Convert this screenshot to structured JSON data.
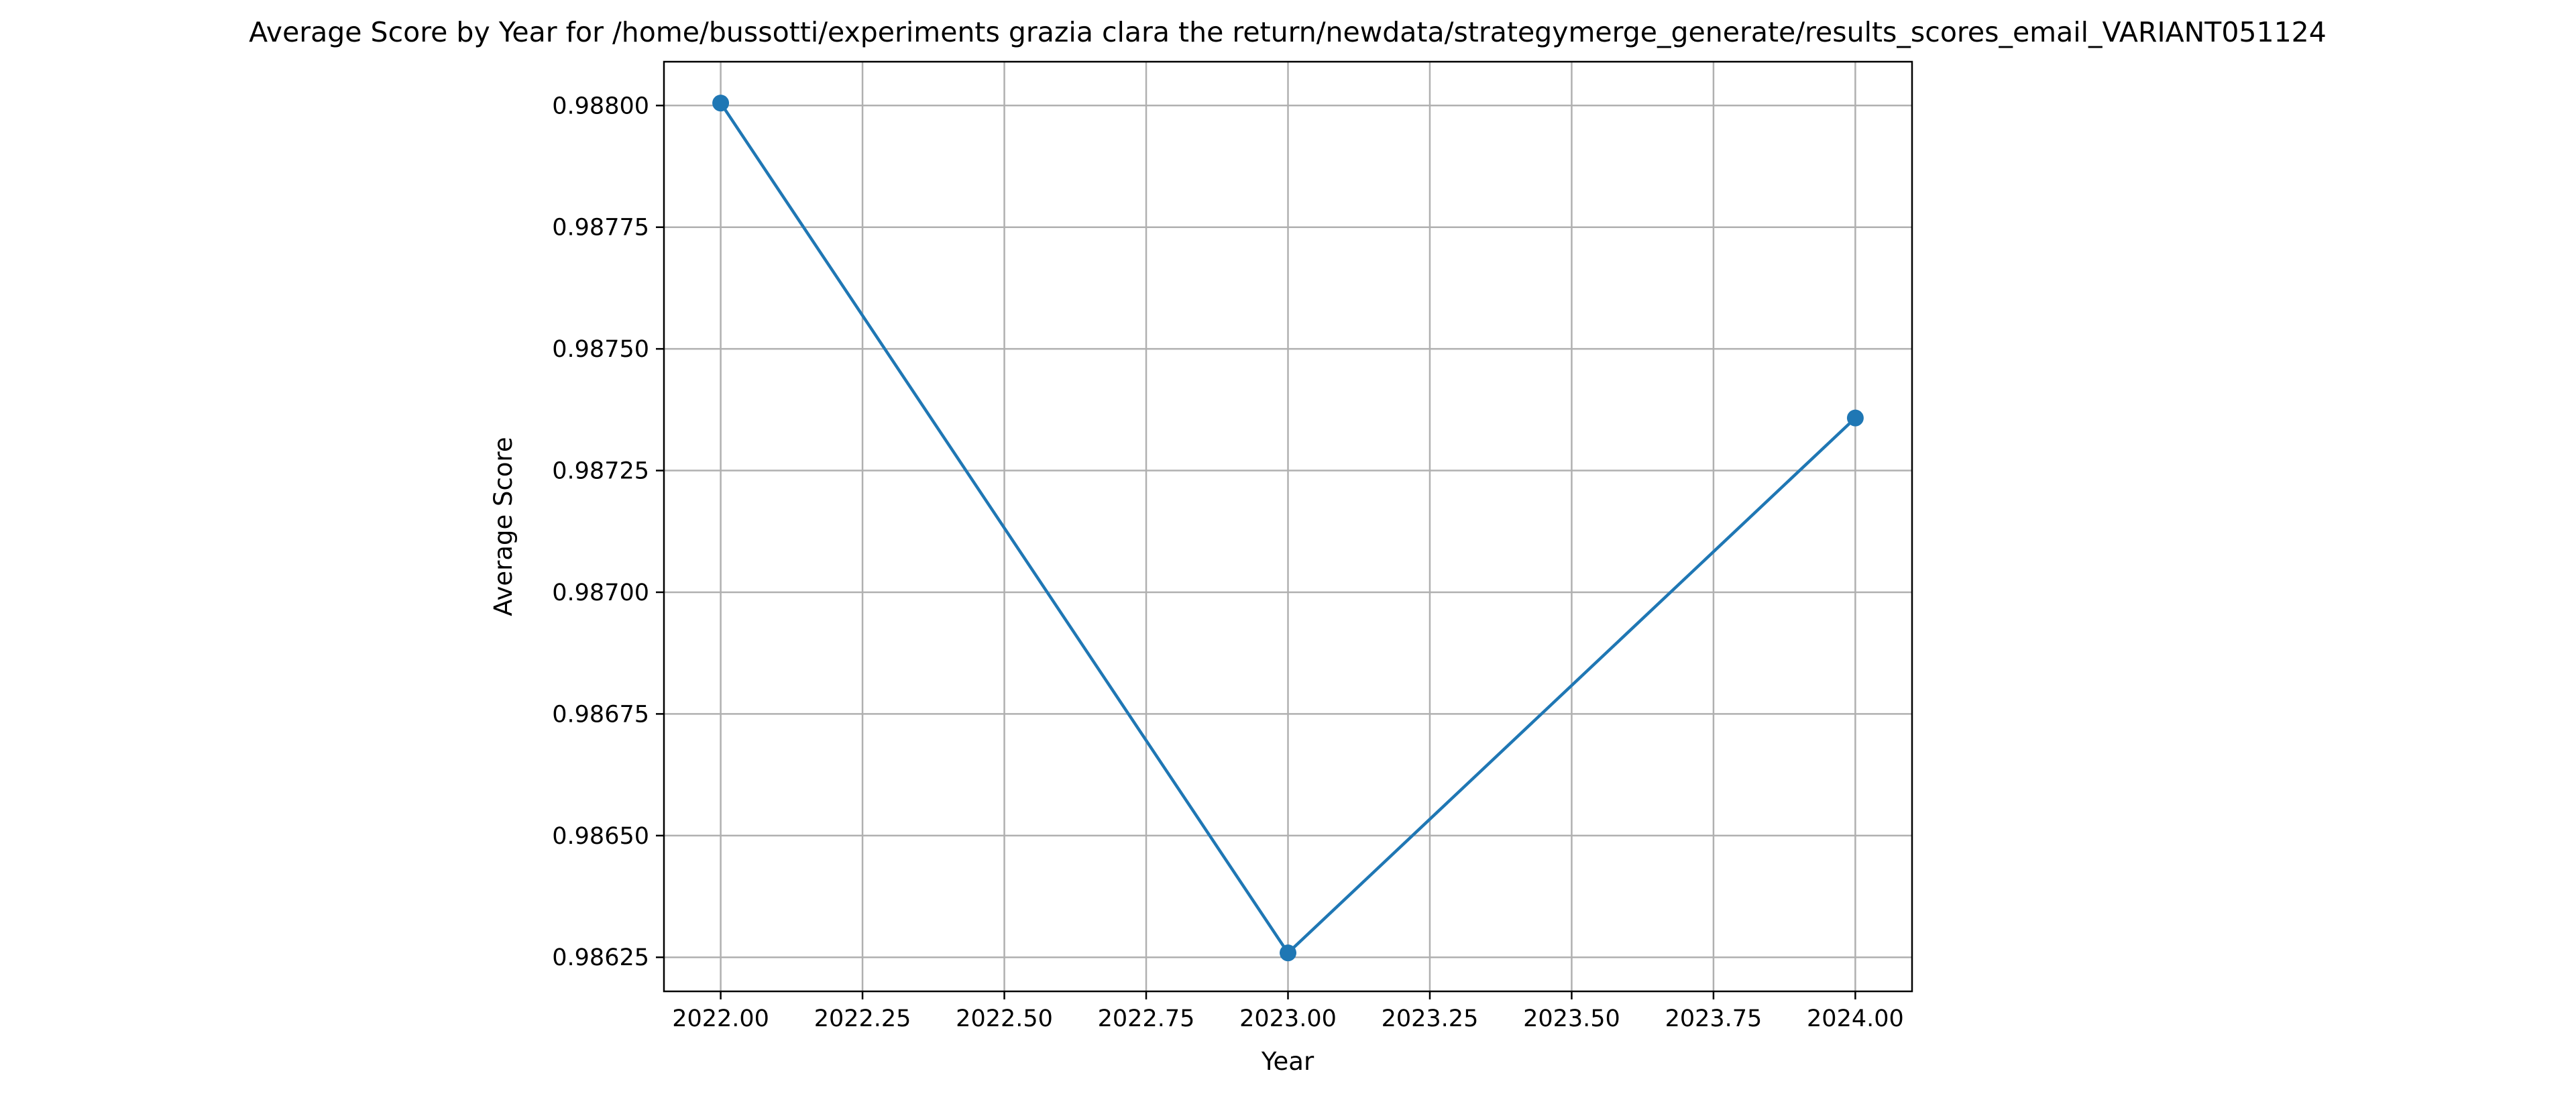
{
  "chart_data": {
    "type": "line",
    "title": "Average Score by Year for /home/bussotti/experiments grazia clara the return/newdata/strategymerge_generate/results_scores_email_VARIANT051124",
    "xlabel": "Year",
    "ylabel": "Average Score",
    "x": [
      2022.0,
      2023.0,
      2024.0
    ],
    "series": [
      {
        "values": [
          0.988005,
          0.986259,
          0.987358
        ],
        "color": "#1f77b4",
        "marker": "circle"
      }
    ],
    "xlim": [
      2021.9,
      2024.1
    ],
    "ylim": [
      0.98618,
      0.98809
    ],
    "xticks": [
      {
        "value": 2022.0,
        "label": "2022.00"
      },
      {
        "value": 2022.25,
        "label": "2022.25"
      },
      {
        "value": 2022.5,
        "label": "2022.50"
      },
      {
        "value": 2022.75,
        "label": "2022.75"
      },
      {
        "value": 2023.0,
        "label": "2023.00"
      },
      {
        "value": 2023.25,
        "label": "2023.25"
      },
      {
        "value": 2023.5,
        "label": "2023.50"
      },
      {
        "value": 2023.75,
        "label": "2023.75"
      },
      {
        "value": 2024.0,
        "label": "2024.00"
      }
    ],
    "yticks": [
      {
        "value": 0.98625,
        "label": "0.98625"
      },
      {
        "value": 0.9865,
        "label": "0.98650"
      },
      {
        "value": 0.98675,
        "label": "0.98675"
      },
      {
        "value": 0.987,
        "label": "0.98700"
      },
      {
        "value": 0.98725,
        "label": "0.98725"
      },
      {
        "value": 0.9875,
        "label": "0.98750"
      },
      {
        "value": 0.98775,
        "label": "0.98775"
      },
      {
        "value": 0.988,
        "label": "0.98800"
      }
    ],
    "grid": true,
    "grid_color": "#b0b0b0",
    "axis_color": "#000000"
  }
}
